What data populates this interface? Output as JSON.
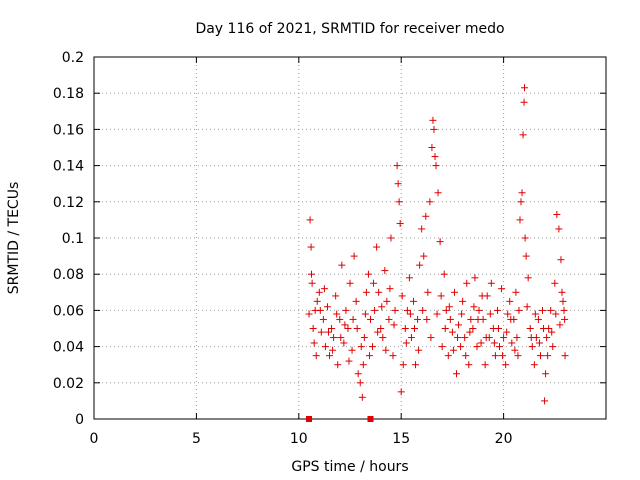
{
  "chart_data": {
    "type": "scatter",
    "title": "Day 116 of 2021, SRMTID for receiver medo",
    "xlabel": "GPS time / hours",
    "ylabel": "SRMTID / TECUs",
    "xlim": [
      0,
      25
    ],
    "ylim": [
      0,
      0.2
    ],
    "xticks": [
      0,
      5,
      10,
      15,
      20
    ],
    "xtick_labels": [
      "0",
      "5",
      "10",
      "15",
      "20"
    ],
    "yticks": [
      0,
      0.02,
      0.04,
      0.06,
      0.08,
      0.1,
      0.12,
      0.14,
      0.16,
      0.18,
      0.2
    ],
    "ytick_labels": [
      "0",
      "0.02",
      "0.04",
      "0.06",
      "0.08",
      "0.1",
      "0.12",
      "0.14",
      "0.16",
      "0.18",
      "0.2"
    ],
    "grid": true,
    "marker": "+",
    "color": "#e00000",
    "series": [
      {
        "name": "SRMTID",
        "points": [
          [
            10.5,
            0.058
          ],
          [
            10.55,
            0.11
          ],
          [
            10.6,
            0.095
          ],
          [
            10.62,
            0.08
          ],
          [
            10.65,
            0.075
          ],
          [
            10.7,
            0.05
          ],
          [
            10.75,
            0.042
          ],
          [
            10.8,
            0.06
          ],
          [
            10.85,
            0.035
          ],
          [
            10.9,
            0.065
          ],
          [
            11.0,
            0.07
          ],
          [
            11.1,
            0.048
          ],
          [
            11.2,
            0.055
          ],
          [
            11.3,
            0.04
          ],
          [
            11.4,
            0.062
          ],
          [
            11.5,
            0.035
          ],
          [
            11.6,
            0.05
          ],
          [
            11.7,
            0.045
          ],
          [
            11.8,
            0.068
          ],
          [
            11.9,
            0.03
          ],
          [
            12.0,
            0.055
          ],
          [
            12.1,
            0.085
          ],
          [
            12.2,
            0.042
          ],
          [
            12.3,
            0.06
          ],
          [
            12.4,
            0.05
          ],
          [
            12.5,
            0.075
          ],
          [
            12.6,
            0.038
          ],
          [
            12.7,
            0.09
          ],
          [
            12.8,
            0.065
          ],
          [
            12.9,
            0.025
          ],
          [
            13.0,
            0.02
          ],
          [
            13.1,
            0.012
          ],
          [
            13.15,
            0.03
          ],
          [
            13.2,
            0.045
          ],
          [
            13.3,
            0.07
          ],
          [
            13.4,
            0.08
          ],
          [
            13.5,
            0.055
          ],
          [
            13.6,
            0.04
          ],
          [
            13.7,
            0.06
          ],
          [
            13.8,
            0.095
          ],
          [
            13.9,
            0.07
          ],
          [
            14.0,
            0.05
          ],
          [
            14.1,
            0.045
          ],
          [
            14.2,
            0.082
          ],
          [
            14.3,
            0.065
          ],
          [
            14.4,
            0.055
          ],
          [
            14.5,
            0.1
          ],
          [
            14.6,
            0.035
          ],
          [
            14.7,
            0.06
          ],
          [
            14.8,
            0.14
          ],
          [
            14.85,
            0.13
          ],
          [
            14.9,
            0.12
          ],
          [
            14.95,
            0.108
          ],
          [
            15.0,
            0.015
          ],
          [
            15.1,
            0.03
          ],
          [
            15.2,
            0.05
          ],
          [
            15.3,
            0.06
          ],
          [
            15.4,
            0.078
          ],
          [
            15.5,
            0.045
          ],
          [
            15.6,
            0.065
          ],
          [
            15.7,
            0.03
          ],
          [
            15.8,
            0.055
          ],
          [
            15.9,
            0.085
          ],
          [
            16.0,
            0.105
          ],
          [
            16.1,
            0.09
          ],
          [
            16.2,
            0.112
          ],
          [
            16.3,
            0.07
          ],
          [
            16.4,
            0.12
          ],
          [
            16.5,
            0.15
          ],
          [
            16.55,
            0.165
          ],
          [
            16.6,
            0.16
          ],
          [
            16.65,
            0.145
          ],
          [
            16.7,
            0.14
          ],
          [
            16.8,
            0.125
          ],
          [
            16.9,
            0.098
          ],
          [
            17.0,
            0.04
          ],
          [
            17.1,
            0.08
          ],
          [
            17.2,
            0.06
          ],
          [
            17.3,
            0.035
          ],
          [
            17.4,
            0.055
          ],
          [
            17.5,
            0.048
          ],
          [
            17.6,
            0.07
          ],
          [
            17.7,
            0.025
          ],
          [
            17.8,
            0.052
          ],
          [
            17.9,
            0.04
          ],
          [
            18.0,
            0.065
          ],
          [
            18.1,
            0.045
          ],
          [
            18.2,
            0.075
          ],
          [
            18.3,
            0.03
          ],
          [
            18.4,
            0.055
          ],
          [
            18.5,
            0.05
          ],
          [
            18.6,
            0.078
          ],
          [
            18.7,
            0.04
          ],
          [
            18.8,
            0.06
          ],
          [
            18.9,
            0.042
          ],
          [
            19.0,
            0.055
          ],
          [
            19.1,
            0.03
          ],
          [
            19.2,
            0.068
          ],
          [
            19.3,
            0.045
          ],
          [
            19.4,
            0.075
          ],
          [
            19.5,
            0.05
          ],
          [
            19.6,
            0.035
          ],
          [
            19.7,
            0.06
          ],
          [
            19.8,
            0.04
          ],
          [
            19.9,
            0.072
          ],
          [
            20.0,
            0.045
          ],
          [
            20.1,
            0.03
          ],
          [
            20.2,
            0.058
          ],
          [
            20.3,
            0.065
          ],
          [
            20.4,
            0.042
          ],
          [
            20.5,
            0.055
          ],
          [
            20.6,
            0.07
          ],
          [
            20.7,
            0.035
          ],
          [
            20.75,
            0.06
          ],
          [
            20.8,
            0.11
          ],
          [
            20.85,
            0.12
          ],
          [
            20.9,
            0.125
          ],
          [
            20.95,
            0.157
          ],
          [
            21.0,
            0.175
          ],
          [
            21.02,
            0.183
          ],
          [
            21.05,
            0.1
          ],
          [
            21.1,
            0.09
          ],
          [
            21.2,
            0.078
          ],
          [
            21.3,
            0.05
          ],
          [
            21.4,
            0.04
          ],
          [
            21.5,
            0.03
          ],
          [
            21.6,
            0.045
          ],
          [
            21.7,
            0.055
          ],
          [
            21.8,
            0.035
          ],
          [
            21.9,
            0.06
          ],
          [
            22.0,
            0.01
          ],
          [
            22.05,
            0.025
          ],
          [
            22.1,
            0.045
          ],
          [
            22.2,
            0.05
          ],
          [
            22.3,
            0.06
          ],
          [
            22.4,
            0.04
          ],
          [
            22.5,
            0.075
          ],
          [
            22.6,
            0.113
          ],
          [
            22.7,
            0.105
          ],
          [
            22.8,
            0.088
          ],
          [
            22.85,
            0.07
          ],
          [
            22.9,
            0.065
          ],
          [
            22.95,
            0.06
          ],
          [
            23.0,
            0.035
          ],
          [
            11.05,
            0.06
          ],
          [
            11.25,
            0.072
          ],
          [
            11.45,
            0.048
          ],
          [
            11.65,
            0.038
          ],
          [
            11.85,
            0.058
          ],
          [
            12.05,
            0.045
          ],
          [
            12.25,
            0.052
          ],
          [
            12.45,
            0.032
          ],
          [
            12.65,
            0.055
          ],
          [
            12.85,
            0.05
          ],
          [
            13.05,
            0.04
          ],
          [
            13.25,
            0.058
          ],
          [
            13.45,
            0.035
          ],
          [
            13.65,
            0.075
          ],
          [
            13.85,
            0.048
          ],
          [
            14.05,
            0.062
          ],
          [
            14.25,
            0.038
          ],
          [
            14.45,
            0.072
          ],
          [
            14.65,
            0.052
          ],
          [
            15.05,
            0.068
          ],
          [
            15.25,
            0.042
          ],
          [
            15.45,
            0.058
          ],
          [
            15.65,
            0.05
          ],
          [
            15.85,
            0.038
          ],
          [
            16.05,
            0.06
          ],
          [
            16.25,
            0.055
          ],
          [
            16.45,
            0.045
          ],
          [
            16.75,
            0.058
          ],
          [
            16.95,
            0.068
          ],
          [
            17.15,
            0.05
          ],
          [
            17.35,
            0.062
          ],
          [
            17.55,
            0.038
          ],
          [
            17.75,
            0.045
          ],
          [
            17.95,
            0.058
          ],
          [
            18.15,
            0.035
          ],
          [
            18.35,
            0.048
          ],
          [
            18.55,
            0.062
          ],
          [
            18.75,
            0.055
          ],
          [
            18.95,
            0.068
          ],
          [
            19.15,
            0.045
          ],
          [
            19.35,
            0.058
          ],
          [
            19.55,
            0.042
          ],
          [
            19.75,
            0.05
          ],
          [
            19.95,
            0.035
          ],
          [
            20.15,
            0.048
          ],
          [
            20.35,
            0.055
          ],
          [
            20.55,
            0.038
          ],
          [
            20.65,
            0.045
          ],
          [
            21.15,
            0.062
          ],
          [
            21.35,
            0.045
          ],
          [
            21.55,
            0.058
          ],
          [
            21.75,
            0.042
          ],
          [
            21.95,
            0.05
          ],
          [
            22.15,
            0.035
          ],
          [
            22.35,
            0.048
          ],
          [
            22.55,
            0.058
          ],
          [
            22.75,
            0.052
          ],
          [
            22.98,
            0.055
          ]
        ]
      }
    ],
    "zero_markers": [
      10.5,
      13.5
    ]
  }
}
